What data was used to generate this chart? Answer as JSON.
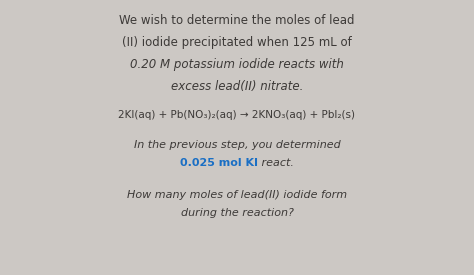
{
  "background_color": "#ccc8c4",
  "title_lines": [
    "We wish to determine the moles of lead",
    "(II) iodide precipitated when 125 mL of",
    "0.20 M potassium iodide reacts with",
    "excess lead(II) nitrate."
  ],
  "title_italic": [
    false,
    false,
    true,
    true
  ],
  "equation": "2KI(aq) + Pb(NO₃)₂(aq) → 2KNO₃(aq) + PbI₂(s)",
  "prev_step_line1": "In the previous step, you determined",
  "prev_step_line2_blue": "0.025 mol KI",
  "prev_step_line2_normal": " react.",
  "question_lines": [
    "How many moles of lead(II) iodide form",
    "during the reaction?"
  ],
  "text_color": "#3d3a38",
  "blue_color": "#1a6fc4",
  "title_fontsize": 8.5,
  "eq_fontsize": 7.5,
  "body_fontsize": 8.0
}
